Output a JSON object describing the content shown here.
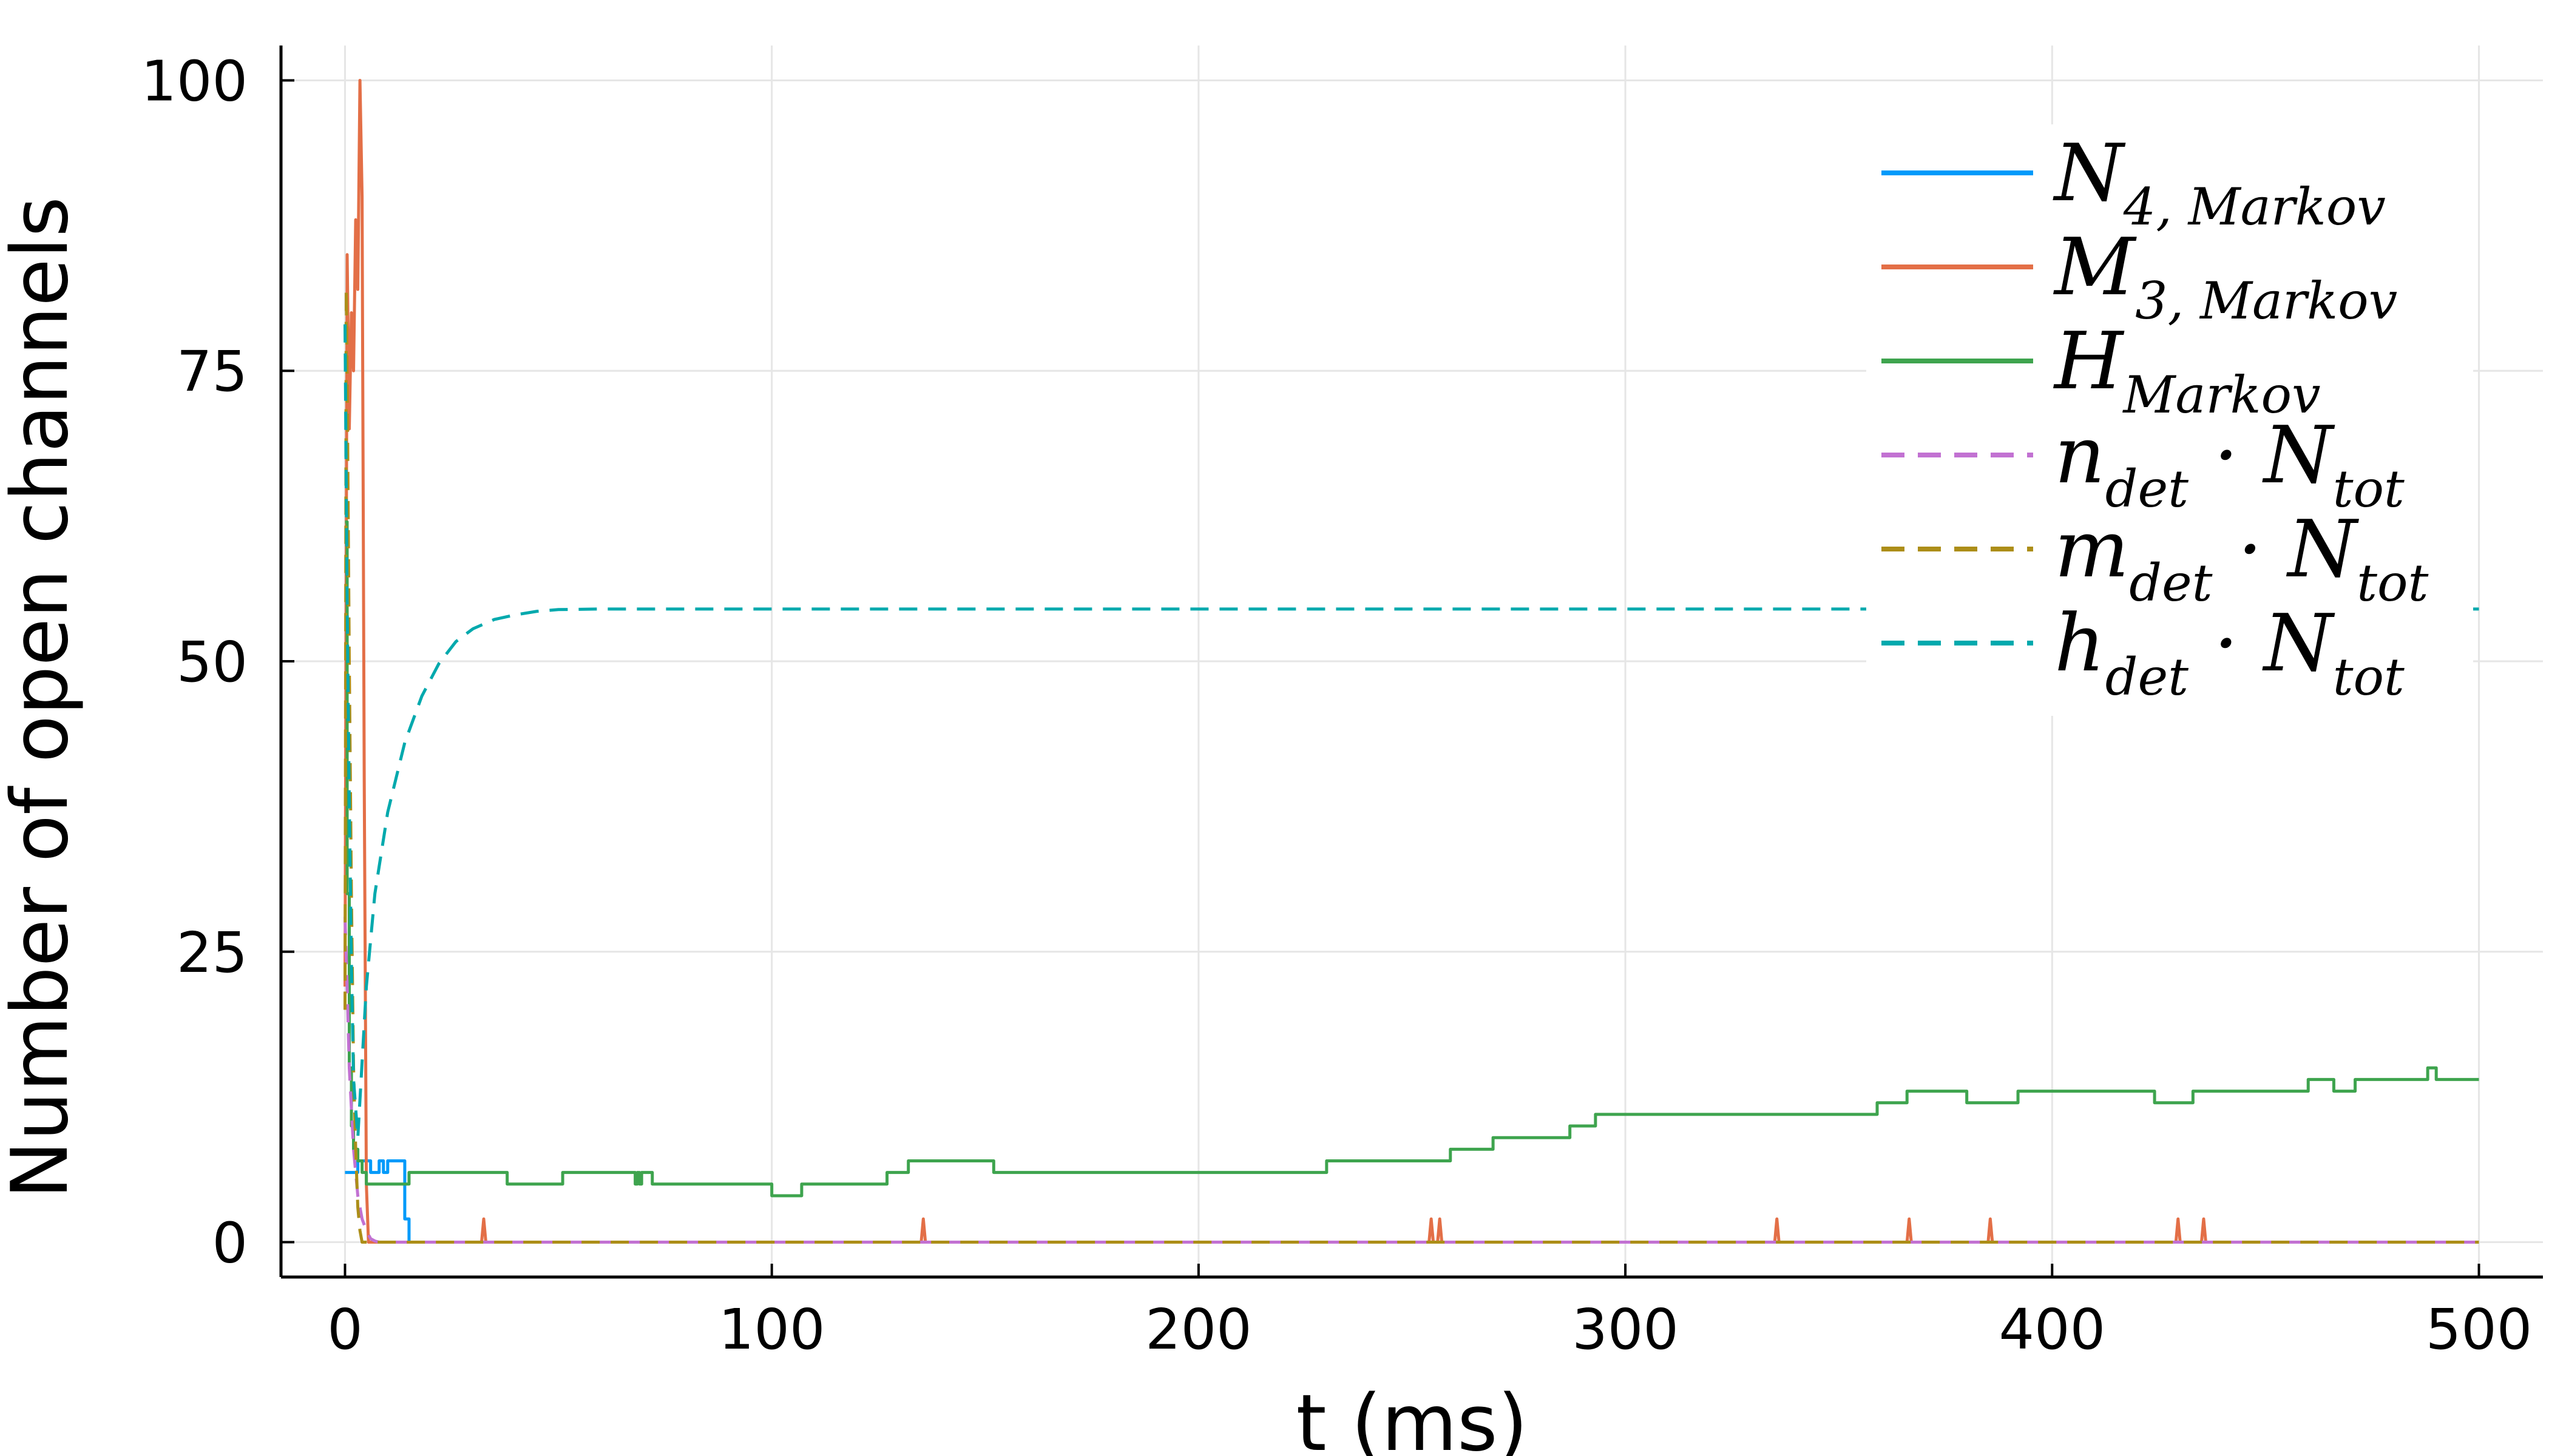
{
  "chart_data": {
    "type": "line",
    "title": "",
    "xlabel": "t (ms)",
    "ylabel": "Number of open channels",
    "xlim": [
      -15,
      515
    ],
    "ylim": [
      -3,
      103
    ],
    "xticks": [
      0,
      100,
      200,
      300,
      400,
      500
    ],
    "xtick_labels": [
      "0",
      "100",
      "200",
      "300",
      "400",
      "500"
    ],
    "yticks": [
      0,
      25,
      50,
      75,
      100
    ],
    "ytick_labels": [
      "0",
      "25",
      "50",
      "75",
      "100"
    ],
    "grid": true,
    "legend_position": "top-right",
    "series": [
      {
        "legend": {
          "main": "N",
          "sub": "4, Markov",
          "sep": "",
          "main2": "",
          "sub2": ""
        },
        "color": "#009AFA",
        "dash": "solid",
        "step": true,
        "x": [
          0,
          3,
          6,
          8,
          9,
          10,
          14,
          15,
          500
        ],
        "y": [
          6,
          7,
          6,
          7,
          6,
          7,
          2,
          0,
          0
        ]
      },
      {
        "legend": {
          "main": "M",
          "sub": "3, Markov",
          "sep": "",
          "main2": "",
          "sub2": ""
        },
        "color": "#E36F47",
        "dash": "solid",
        "step": false,
        "x": [
          0,
          0.5,
          1,
          1.5,
          2,
          2.5,
          3,
          3.5,
          4,
          4.5,
          5,
          5.5,
          6,
          32,
          32.5,
          33,
          135,
          135.5,
          136,
          254,
          254.5,
          255,
          256,
          256.5,
          257,
          335,
          335.5,
          336,
          366,
          366.5,
          367,
          385,
          385.5,
          386,
          429,
          429.5,
          430,
          435,
          435.5,
          436,
          500
        ],
        "y": [
          22,
          85,
          70,
          80,
          75,
          88,
          82,
          100,
          90,
          40,
          5,
          0,
          0,
          0,
          2,
          0,
          0,
          2,
          0,
          0,
          2,
          0,
          0,
          2,
          0,
          0,
          2,
          0,
          0,
          2,
          0,
          0,
          2,
          0,
          0,
          2,
          0,
          0,
          2,
          0,
          0
        ]
      },
      {
        "legend": {
          "main": "H",
          "sub": "Markov",
          "sep": "",
          "main2": "",
          "sub2": ""
        },
        "color": "#3EA44E",
        "dash": "solid",
        "step": true,
        "x": [
          0,
          0.5,
          1,
          1.5,
          2,
          3,
          4,
          5,
          15,
          38,
          51,
          68,
          68.5,
          69,
          69.5,
          72,
          100,
          107,
          127,
          132,
          152,
          230,
          259,
          264,
          269,
          287,
          293,
          359,
          366,
          380,
          392,
          424,
          433,
          460,
          466,
          471,
          488,
          490,
          500
        ],
        "y": [
          62,
          30,
          15,
          10,
          8,
          7,
          6,
          5,
          6,
          5,
          6,
          5,
          6,
          5,
          6,
          5,
          4,
          5,
          6,
          7,
          6,
          7,
          8,
          8,
          9,
          10,
          11,
          12,
          13,
          12,
          13,
          12,
          13,
          14,
          13,
          14,
          15,
          14,
          14
        ]
      },
      {
        "legend": {
          "main": "n",
          "sub": "det",
          "sep": " · ",
          "main2": "N",
          "sub2": "tot"
        },
        "color": "#C271D2",
        "dash": "dashed",
        "step": false,
        "x": [
          0,
          0.5,
          1,
          2,
          3,
          4,
          5,
          6,
          7,
          8,
          500
        ],
        "y": [
          28,
          22,
          15,
          8,
          4,
          2,
          1,
          0.3,
          0.1,
          0,
          0
        ]
      },
      {
        "legend": {
          "main": "m",
          "sub": "det",
          "sep": " · ",
          "main2": "N",
          "sub2": "tot"
        },
        "color": "#AC8E18",
        "dash": "dashed",
        "step": false,
        "x": [
          0,
          0.3,
          0.6,
          1,
          1.5,
          2,
          2.5,
          3,
          3.5,
          4,
          500
        ],
        "y": [
          20,
          82,
          70,
          50,
          30,
          15,
          8,
          3,
          1,
          0,
          0
        ]
      },
      {
        "legend": {
          "main": "h",
          "sub": "det",
          "sep": " · ",
          "main2": "N",
          "sub2": "tot"
        },
        "color": "#00A9AD",
        "dash": "dashed",
        "step": false,
        "x": [
          0,
          0.5,
          1,
          1.5,
          2,
          3,
          5,
          7,
          10,
          14,
          18,
          22,
          26,
          30,
          35,
          40,
          45,
          50,
          60,
          80,
          100,
          500
        ],
        "y": [
          79,
          55,
          38,
          24,
          14,
          9,
          22,
          30,
          37,
          43,
          47,
          49.8,
          51.7,
          52.8,
          53.6,
          54.0,
          54.3,
          54.45,
          54.5,
          54.5,
          54.5,
          54.5
        ]
      }
    ]
  }
}
